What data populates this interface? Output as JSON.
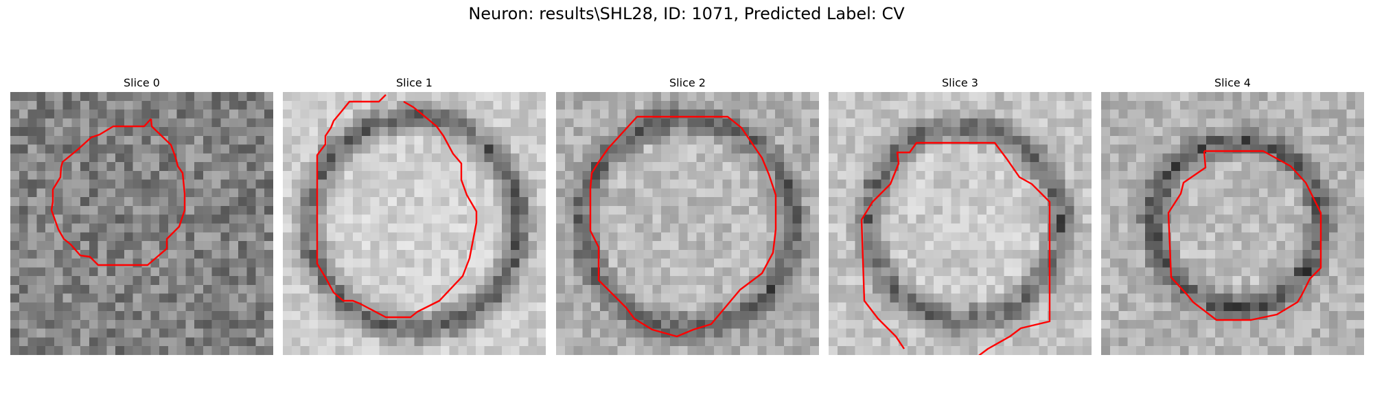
{
  "figure": {
    "title": "Neuron: results\\SHL28, ID: 1071, Predicted Label: CV"
  },
  "slices": [
    {
      "title": "Slice 0"
    },
    {
      "title": "Slice 1"
    },
    {
      "title": "Slice 2"
    },
    {
      "title": "Slice 3"
    },
    {
      "title": "Slice 4"
    }
  ],
  "colors": {
    "contour": "#ff0000"
  }
}
